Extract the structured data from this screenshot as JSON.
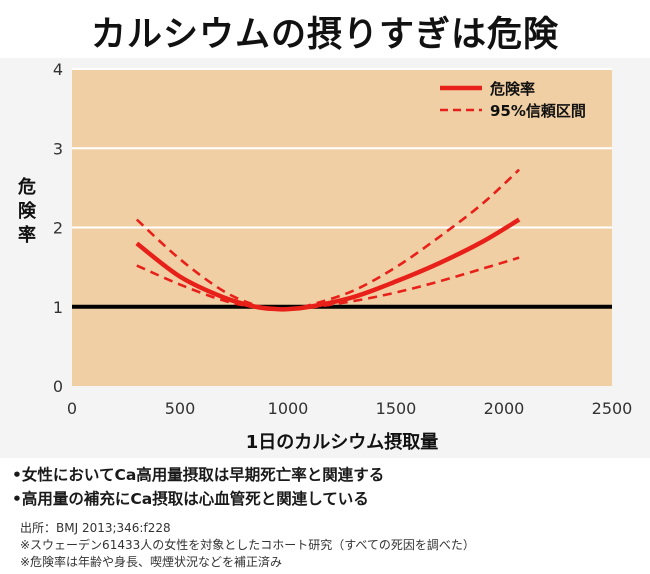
{
  "title": "カルシウムの摂りすぎは危険",
  "chart_data": {
    "type": "line",
    "xlabel": "1日のカルシウム摂取量",
    "ylabel": "危険率",
    "xlim": [
      0,
      2500
    ],
    "ylim": [
      0,
      4
    ],
    "xticks": [
      "0",
      "500",
      "1000",
      "1500",
      "2000",
      "2500"
    ],
    "yticks": [
      "0",
      "1",
      "2",
      "3",
      "4"
    ],
    "grid": "horizontal",
    "legend_position": "top-right",
    "reference_line": {
      "y": 1
    },
    "series": [
      {
        "name": "危険率",
        "style": "solid",
        "color": "#e8201a",
        "x": [
          300,
          500,
          700,
          850,
          950,
          1000,
          1100,
          1300,
          1500,
          1700,
          1900,
          2070
        ],
        "y": [
          1.8,
          1.38,
          1.12,
          1.0,
          0.97,
          0.97,
          1.0,
          1.12,
          1.32,
          1.55,
          1.82,
          2.1
        ]
      },
      {
        "name": "95%信頼区間",
        "style": "dashed",
        "color": "#e8201a",
        "x": [
          300,
          500,
          700,
          850,
          950,
          1000,
          1100,
          1300,
          1500,
          1700,
          1900,
          2070
        ],
        "y": [
          2.1,
          1.6,
          1.2,
          1.02,
          0.97,
          0.97,
          1.02,
          1.2,
          1.5,
          1.88,
          2.3,
          2.73
        ]
      },
      {
        "name": "",
        "style": "dashed",
        "color": "#e8201a",
        "x": [
          300,
          500,
          700,
          850,
          950,
          1000,
          1100,
          1300,
          1500,
          1700,
          1900,
          2070
        ],
        "y": [
          1.52,
          1.28,
          1.08,
          0.99,
          0.96,
          0.97,
          0.99,
          1.07,
          1.18,
          1.32,
          1.48,
          1.62
        ]
      }
    ]
  },
  "bullets": [
    "•女性においてCa高用量摂取は早期死亡率と関連する",
    "•高用量の補充にCa摂取は心血管死と関連している"
  ],
  "notes": [
    "出所：BMJ 2013;346:f228",
    "※スウェーデン61433人の女性を対象としたコホート研究（すべての死因を調べた）",
    "※危険率は年齢や身長、喫煙状況などを補正済み"
  ],
  "colors": {
    "plot_background": "#f1cfa4",
    "panel_background": "#f4f4f4",
    "series": "#e8201a",
    "reference_line": "#000000",
    "grid": "#ffffff"
  }
}
